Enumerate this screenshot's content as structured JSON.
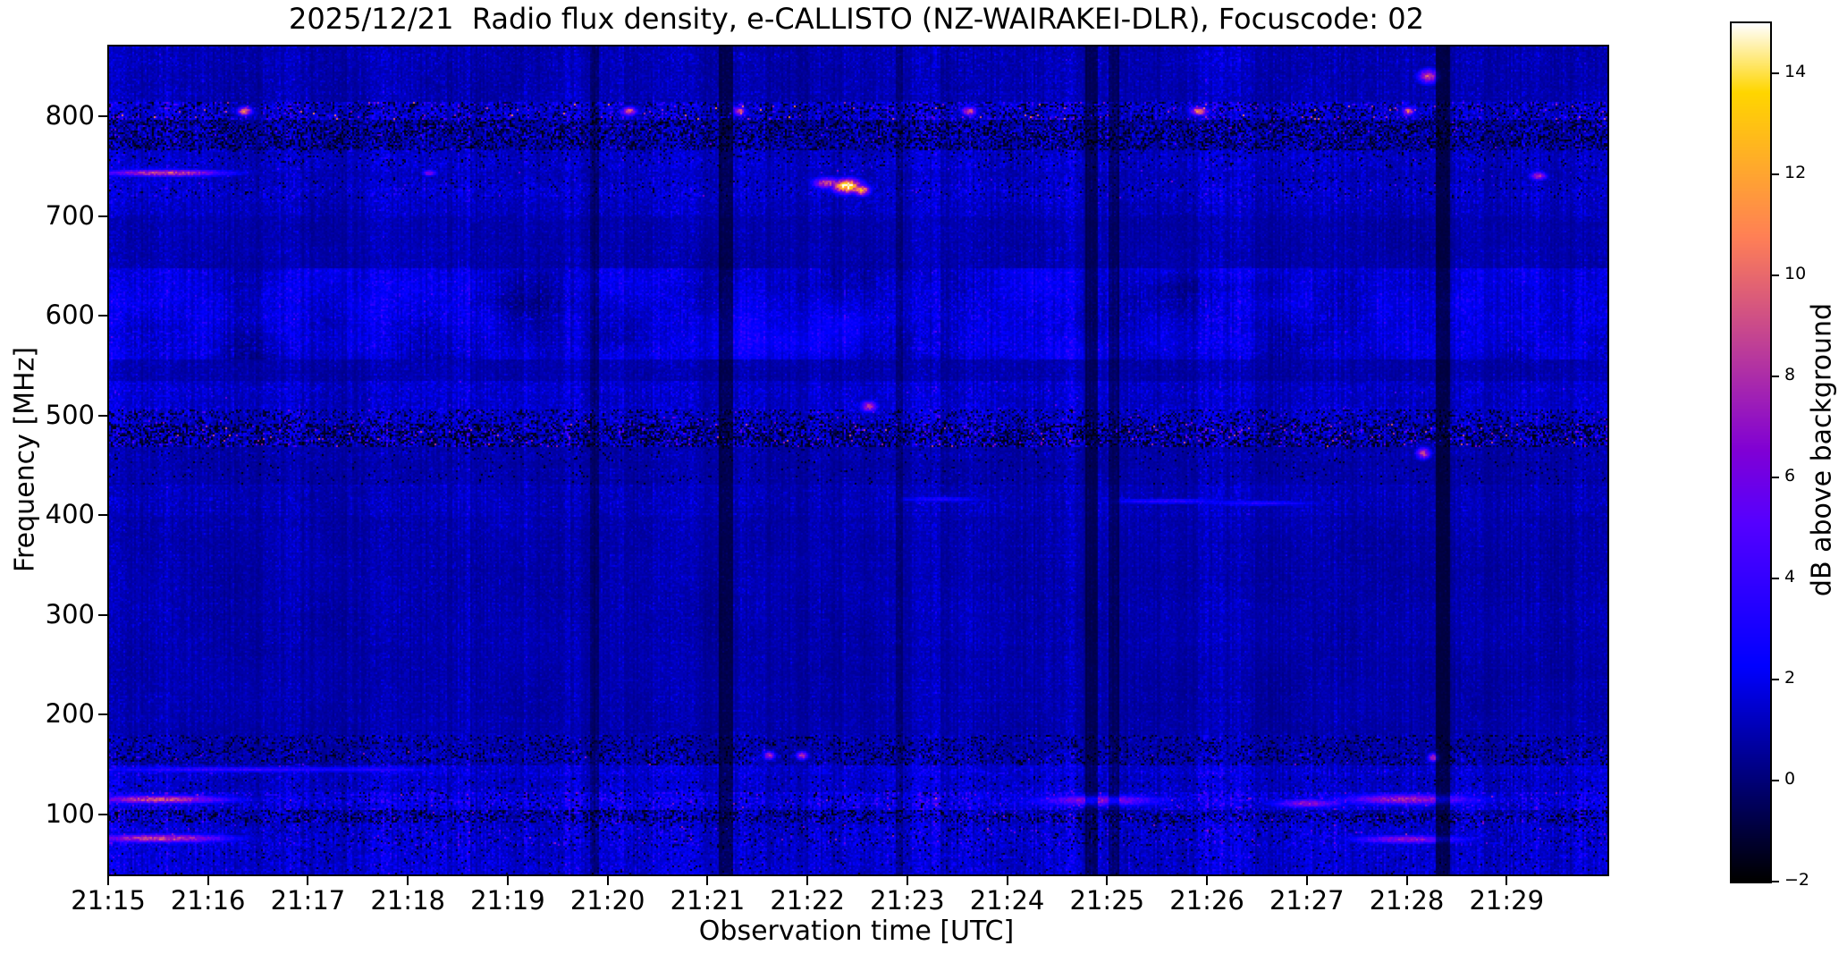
{
  "figure": {
    "background_color": "#ffffff",
    "text_color": "#000000"
  },
  "chart_data": {
    "type": "heatmap",
    "title": "2025/12/21  Radio flux density, e-CALLISTO (NZ-WAIRAKEI-DLR), Focuscode: 02",
    "meta": {
      "date": "2025/12/21",
      "network": "e-CALLISTO",
      "station": "NZ-WAIRAKEI-DLR",
      "focuscode": "02"
    },
    "xlabel": "Observation time [UTC]",
    "ylabel": "Frequency [MHz]",
    "colorbar_label": "dB above background",
    "x_axis": {
      "start": "21:15",
      "end": "21:30",
      "span_minutes": 15,
      "tick_labels": [
        "21:15",
        "21:16",
        "21:17",
        "21:18",
        "21:19",
        "21:20",
        "21:21",
        "21:22",
        "21:23",
        "21:24",
        "21:25",
        "21:26",
        "21:27",
        "21:28",
        "21:29"
      ]
    },
    "y_axis": {
      "range_mhz": [
        40,
        870
      ],
      "tick_values": [
        800,
        700,
        600,
        500,
        400,
        300,
        200,
        100
      ],
      "inverted": false
    },
    "colorbar": {
      "range_db": [
        -2,
        15
      ],
      "tick_values": [
        14,
        12,
        10,
        8,
        6,
        4,
        2,
        0,
        -2
      ],
      "colormap": "gnuplot2",
      "sample_colors": {
        "-2": "#000000",
        "0": "#000078",
        "2": "#0000f0",
        "4": "#3500ff",
        "6": "#7000e5",
        "8": "#ac2da9",
        "10": "#e9696d",
        "12": "#ffa531",
        "14": "#ffe144",
        "15": "#ffffff"
      }
    },
    "noise_bands": [
      {
        "f_lo": 814,
        "f_hi": 870,
        "base_db": 0.55,
        "noise_db": 0.7,
        "black_frac": 0,
        "speckle_frac": 0,
        "speckle_max_db": 0,
        "note": "quiet top band"
      },
      {
        "f_lo": 796,
        "f_hi": 814,
        "base_db": 0.8,
        "noise_db": 1.6,
        "black_frac": 0.22,
        "speckle_frac": 0.025,
        "speckle_max_db": 11,
        "note": "~806 MHz RFI row, pink/salmon speckles"
      },
      {
        "f_lo": 766,
        "f_hi": 796,
        "base_db": 0.35,
        "noise_db": 1.3,
        "black_frac": 0.38,
        "speckle_frac": 0.01,
        "speckle_max_db": 6,
        "note": "dark dropout band below 800"
      },
      {
        "f_lo": 748,
        "f_hi": 766,
        "base_db": 0.8,
        "noise_db": 0.9,
        "black_frac": 0.06,
        "speckle_frac": 0,
        "speckle_max_db": 0,
        "note": ""
      },
      {
        "f_lo": 740,
        "f_hi": 748,
        "base_db": 0.7,
        "noise_db": 0.9,
        "black_frac": 0,
        "speckle_frac": 0.006,
        "speckle_max_db": 8,
        "note": "744 MHz intermittent carrier"
      },
      {
        "f_lo": 718,
        "f_hi": 740,
        "base_db": 0.75,
        "noise_db": 1.0,
        "black_frac": 0.05,
        "speckle_frac": 0.004,
        "speckle_max_db": 7,
        "note": "730 MHz band"
      },
      {
        "f_lo": 700,
        "f_hi": 718,
        "base_db": 0.7,
        "noise_db": 0.8,
        "black_frac": 0,
        "speckle_frac": 0,
        "speckle_max_db": 0,
        "note": ""
      },
      {
        "f_lo": 648,
        "f_hi": 700,
        "base_db": 0.55,
        "noise_db": 0.6,
        "black_frac": 0,
        "speckle_frac": 0,
        "speckle_max_db": 0,
        "note": "quiet"
      },
      {
        "f_lo": 556,
        "f_hi": 648,
        "base_db": 1.0,
        "noise_db": 0.9,
        "black_frac": 0,
        "speckle_frac": 0,
        "speckle_max_db": 0,
        "blotch": 1.2,
        "note": "bright blue blotchy band around 600 MHz"
      },
      {
        "f_lo": 534,
        "f_hi": 556,
        "base_db": 0.55,
        "noise_db": 0.6,
        "black_frac": 0,
        "speckle_frac": 0,
        "speckle_max_db": 0,
        "note": ""
      },
      {
        "f_lo": 506,
        "f_hi": 534,
        "base_db": 0.85,
        "noise_db": 0.9,
        "black_frac": 0,
        "speckle_frac": 0.002,
        "speckle_max_db": 6,
        "note": ""
      },
      {
        "f_lo": 492,
        "f_hi": 506,
        "base_db": 0.7,
        "noise_db": 1.4,
        "black_frac": 0.2,
        "speckle_frac": 0.01,
        "speckle_max_db": 7,
        "note": ""
      },
      {
        "f_lo": 468,
        "f_hi": 492,
        "base_db": 0.5,
        "noise_db": 1.6,
        "black_frac": 0.4,
        "speckle_frac": 0.03,
        "speckle_max_db": 10,
        "note": "~480 MHz RFI band, black with magenta speckles"
      },
      {
        "f_lo": 430,
        "f_hi": 468,
        "base_db": 0.5,
        "noise_db": 0.6,
        "black_frac": 0.03,
        "speckle_frac": 0,
        "speckle_max_db": 0,
        "note": ""
      },
      {
        "f_lo": 398,
        "f_hi": 430,
        "base_db": 0.65,
        "noise_db": 0.7,
        "black_frac": 0,
        "speckle_frac": 0,
        "speckle_max_db": 0,
        "note": "faint 415 MHz streaks region"
      },
      {
        "f_lo": 180,
        "f_hi": 398,
        "base_db": 0.55,
        "noise_db": 0.55,
        "black_frac": 0,
        "speckle_frac": 0,
        "speckle_max_db": 0,
        "note": "large quiet region with vertical striping"
      },
      {
        "f_lo": 165,
        "f_hi": 180,
        "base_db": 0.45,
        "noise_db": 0.9,
        "black_frac": 0.18,
        "speckle_frac": 0,
        "speckle_max_db": 0,
        "note": ""
      },
      {
        "f_lo": 150,
        "f_hi": 165,
        "base_db": 0.5,
        "noise_db": 1.1,
        "black_frac": 0.22,
        "speckle_frac": 0.006,
        "speckle_max_db": 8,
        "note": "~157 MHz dotted band"
      },
      {
        "f_lo": 138,
        "f_hi": 150,
        "base_db": 0.9,
        "noise_db": 1.0,
        "black_frac": 0,
        "speckle_frac": 0,
        "speckle_max_db": 0,
        "note": "145 MHz line"
      },
      {
        "f_lo": 122,
        "f_hi": 138,
        "base_db": 0.85,
        "noise_db": 1.0,
        "black_frac": 0.05,
        "speckle_frac": 0,
        "speckle_max_db": 0,
        "note": ""
      },
      {
        "f_lo": 104,
        "f_hi": 122,
        "base_db": 1.1,
        "noise_db": 1.5,
        "black_frac": 0.08,
        "speckle_frac": 0.012,
        "speckle_max_db": 8,
        "note": "~115 MHz active band"
      },
      {
        "f_lo": 92,
        "f_hi": 104,
        "base_db": 0.6,
        "noise_db": 1.4,
        "black_frac": 0.3,
        "speckle_frac": 0.008,
        "speckle_max_db": 7,
        "note": "~97 MHz dark dotted line"
      },
      {
        "f_lo": 68,
        "f_hi": 92,
        "base_db": 0.9,
        "noise_db": 1.2,
        "black_frac": 0.08,
        "speckle_frac": 0.01,
        "speckle_max_db": 8,
        "note": "~77 MHz band"
      },
      {
        "f_lo": 40,
        "f_hi": 68,
        "base_db": 0.95,
        "noise_db": 1.0,
        "black_frac": 0.04,
        "speckle_frac": 0,
        "speckle_max_db": 0,
        "note": "bottom noise band"
      }
    ],
    "events": [
      {
        "t_min": 7.38,
        "f_mhz": 731,
        "dt_min": 0.1,
        "df_mhz": 5,
        "peak_db": 15,
        "note": "bright white-yellow burst ~21:22.4 at 730 MHz"
      },
      {
        "t_min": 7.18,
        "f_mhz": 734,
        "dt_min": 0.1,
        "df_mhz": 4,
        "peak_db": 9,
        "note": "pink companion"
      },
      {
        "t_min": 7.52,
        "f_mhz": 727,
        "dt_min": 0.06,
        "df_mhz": 4,
        "peak_db": 12,
        "note": ""
      },
      {
        "t_min": 13.2,
        "f_mhz": 841,
        "dt_min": 0.07,
        "df_mhz": 5,
        "peak_db": 9,
        "note": "magenta spot ~21:28.2 at 840 MHz"
      },
      {
        "t_min": 0.55,
        "f_mhz": 744,
        "dt_min": 0.45,
        "df_mhz": 2.5,
        "peak_db": 9,
        "note": "pink dotted streak 21:15.1-21:16"
      },
      {
        "t_min": 3.2,
        "f_mhz": 744,
        "dt_min": 0.05,
        "df_mhz": 2,
        "peak_db": 7,
        "note": ""
      },
      {
        "t_min": 14.3,
        "f_mhz": 741,
        "dt_min": 0.06,
        "df_mhz": 3,
        "peak_db": 8,
        "note": ""
      },
      {
        "t_min": 0.5,
        "f_mhz": 116,
        "dt_min": 0.5,
        "df_mhz": 3,
        "peak_db": 9,
        "note": "pink dots lower-left"
      },
      {
        "t_min": 0.5,
        "f_mhz": 77,
        "dt_min": 0.5,
        "df_mhz": 3,
        "peak_db": 9,
        "note": "pink dots lower-left"
      },
      {
        "t_min": 9.9,
        "f_mhz": 115,
        "dt_min": 0.45,
        "df_mhz": 4,
        "peak_db": 7,
        "note": ""
      },
      {
        "t_min": 13.0,
        "f_mhz": 116,
        "dt_min": 0.5,
        "df_mhz": 4,
        "peak_db": 7.5,
        "note": "bright strip 21:27.7-21:28.6"
      },
      {
        "t_min": 13.0,
        "f_mhz": 76,
        "dt_min": 0.4,
        "df_mhz": 3,
        "peak_db": 7,
        "note": ""
      },
      {
        "t_min": 12.0,
        "f_mhz": 112,
        "dt_min": 0.25,
        "df_mhz": 3,
        "peak_db": 7,
        "note": ""
      },
      {
        "t_min": 7.6,
        "f_mhz": 510,
        "dt_min": 0.06,
        "df_mhz": 4,
        "peak_db": 8,
        "note": "pink dot ~21:22.6"
      },
      {
        "t_min": 13.15,
        "f_mhz": 463,
        "dt_min": 0.05,
        "df_mhz": 4,
        "peak_db": 8.5,
        "note": "pink dot ~21:28.2"
      },
      {
        "t_min": 10.6,
        "f_mhz": 415,
        "dt_min": 0.5,
        "df_mhz": 2,
        "peak_db": 3.6,
        "note": "blue streak"
      },
      {
        "t_min": 11.5,
        "f_mhz": 413,
        "dt_min": 0.45,
        "df_mhz": 2,
        "peak_db": 3.4,
        "note": "blue streak"
      },
      {
        "t_min": 8.3,
        "f_mhz": 417,
        "dt_min": 0.35,
        "df_mhz": 2,
        "peak_db": 3.2,
        "note": "blue streak"
      },
      {
        "t_min": 1.2,
        "f_mhz": 146,
        "dt_min": 1.2,
        "df_mhz": 2,
        "peak_db": 4.2,
        "note": "145 MHz line strong on left"
      },
      {
        "t_min": 2.6,
        "f_mhz": 146,
        "dt_min": 0.5,
        "df_mhz": 2,
        "peak_db": 3.6,
        "note": ""
      },
      {
        "t_min": 6.6,
        "f_mhz": 160,
        "dt_min": 0.04,
        "df_mhz": 3,
        "peak_db": 8,
        "note": "dot pair"
      },
      {
        "t_min": 6.93,
        "f_mhz": 160,
        "dt_min": 0.04,
        "df_mhz": 3,
        "peak_db": 8,
        "note": "dot pair"
      },
      {
        "t_min": 13.25,
        "f_mhz": 158,
        "dt_min": 0.04,
        "df_mhz": 3,
        "peak_db": 8,
        "note": ""
      },
      {
        "t_min": 1.35,
        "f_mhz": 806,
        "dt_min": 0.05,
        "df_mhz": 3,
        "peak_db": 11,
        "note": "salmon dot on 800 band"
      },
      {
        "t_min": 5.2,
        "f_mhz": 806,
        "dt_min": 0.05,
        "df_mhz": 3,
        "peak_db": 10,
        "note": ""
      },
      {
        "t_min": 6.3,
        "f_mhz": 806,
        "dt_min": 0.04,
        "df_mhz": 3,
        "peak_db": 10,
        "note": ""
      },
      {
        "t_min": 8.6,
        "f_mhz": 806,
        "dt_min": 0.05,
        "df_mhz": 3,
        "peak_db": 10,
        "note": ""
      },
      {
        "t_min": 10.9,
        "f_mhz": 806,
        "dt_min": 0.06,
        "df_mhz": 3,
        "peak_db": 11,
        "note": ""
      },
      {
        "t_min": 13.0,
        "f_mhz": 806,
        "dt_min": 0.04,
        "df_mhz": 3,
        "peak_db": 10,
        "note": ""
      }
    ],
    "dark_columns": [
      {
        "t_min": 4.85,
        "width_min": 0.04,
        "factor": 0.6
      },
      {
        "t_min": 6.17,
        "width_min": 0.06,
        "factor": 0.45
      },
      {
        "t_min": 7.9,
        "width_min": 0.03,
        "factor": 0.65
      },
      {
        "t_min": 9.83,
        "width_min": 0.05,
        "factor": 0.5
      },
      {
        "t_min": 10.05,
        "width_min": 0.04,
        "factor": 0.55
      },
      {
        "t_min": 13.35,
        "width_min": 0.06,
        "factor": 0.4
      }
    ],
    "bright_columns": [
      {
        "t_min": 0.3,
        "width_min": 0.3,
        "gain": 1.3
      },
      {
        "t_min": 3.35,
        "width_min": 0.25,
        "gain": 1.25
      },
      {
        "t_min": 8.1,
        "width_min": 0.2,
        "gain": 1.2
      },
      {
        "t_min": 11.2,
        "width_min": 0.3,
        "gain": 1.2
      }
    ]
  }
}
